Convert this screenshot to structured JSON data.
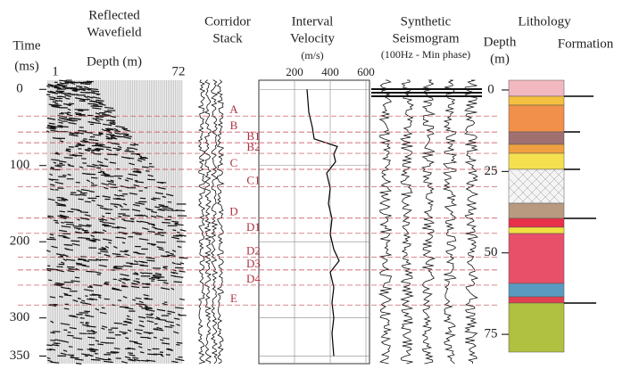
{
  "wavefield": {
    "title_lines": [
      "Reflected",
      "Wavefield"
    ],
    "depth_label": "Depth (m)",
    "first_trace": "1",
    "last_trace": "72"
  },
  "time_axis": {
    "label": "Time",
    "unit": "(ms)",
    "lim": [
      -12,
      360
    ],
    "ticks": [
      0,
      100,
      200,
      300,
      350
    ]
  },
  "corridor": {
    "title_lines": [
      "Corridor",
      "Stack"
    ]
  },
  "markers": [
    {
      "label": "A",
      "time": 35
    },
    {
      "label": "B",
      "time": 56
    },
    {
      "label": "B1",
      "time": 70
    },
    {
      "label": "B2",
      "time": 84
    },
    {
      "label": "C",
      "time": 105
    },
    {
      "label": "C1",
      "time": 128
    },
    {
      "label": "D",
      "time": 169
    },
    {
      "label": "D1",
      "time": 189
    },
    {
      "label": "D2",
      "time": 220
    },
    {
      "label": "D3",
      "time": 237
    },
    {
      "label": "D4",
      "time": 257
    },
    {
      "label": "E",
      "time": 283
    }
  ],
  "velocity": {
    "title_lines": [
      "Interval",
      "Velocity"
    ],
    "unit": "(m/s)",
    "xlim": [
      0,
      620
    ],
    "xticks": [
      200,
      400,
      600
    ],
    "time": [
      0,
      30,
      50,
      65,
      75,
      85,
      95,
      110,
      130,
      150,
      170,
      190,
      210,
      225,
      240,
      260,
      280,
      300,
      320,
      350
    ],
    "values": [
      270,
      280,
      300,
      310,
      440,
      420,
      430,
      380,
      400,
      390,
      410,
      400,
      420,
      450,
      400,
      420,
      410,
      420,
      410,
      420
    ]
  },
  "synthetic": {
    "title_lines": [
      "Synthetic",
      "Seismogram"
    ],
    "subtitle": "(100Hz - Min phase)"
  },
  "lithology": {
    "title": "Lithology",
    "depth_label_lines": [
      "Depth",
      "(m)"
    ],
    "formation": "Formation",
    "lim": [
      -3,
      84
    ],
    "ticks": [
      0,
      25,
      50,
      75
    ]
  }
}
